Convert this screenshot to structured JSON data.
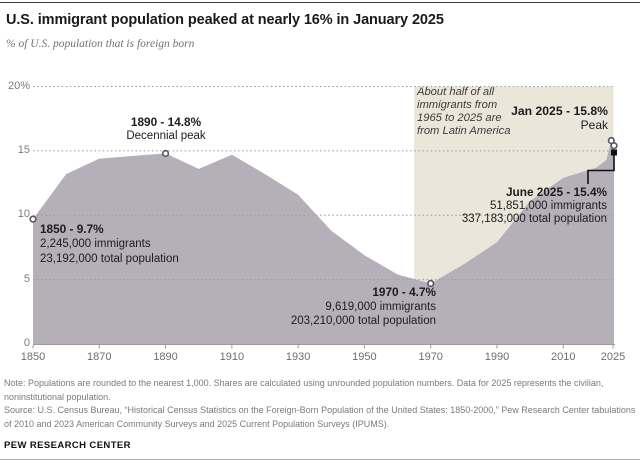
{
  "header": {
    "title": "U.S. immigrant population peaked at nearly 16% in January 2025",
    "subtitle": "% of U.S. population that is foreign born"
  },
  "chart_data": {
    "type": "area",
    "title": "U.S. immigrant population peaked at nearly 16% in January 2025",
    "ylabel": "% of U.S. population that is foreign born",
    "xlabel": "",
    "ylim": [
      0,
      20
    ],
    "grid": "dotted horizontal lines at 5, 10, 15, 20",
    "y_ticks": [
      {
        "value": 0,
        "label": "0"
      },
      {
        "value": 5,
        "label": "5"
      },
      {
        "value": 10,
        "label": "10"
      },
      {
        "value": 15,
        "label": "15"
      },
      {
        "value": 20,
        "label": "20%"
      }
    ],
    "x_ticks": [
      "1850",
      "1870",
      "1890",
      "1910",
      "1930",
      "1950",
      "1970",
      "1990",
      "2010",
      "2025"
    ],
    "series": [
      {
        "name": "Foreign-born share of U.S. population",
        "points": [
          {
            "x": "1850",
            "y": 9.7
          },
          {
            "x": "1860",
            "y": 13.2
          },
          {
            "x": "1870",
            "y": 14.4
          },
          {
            "x": "1890",
            "y": 14.8
          },
          {
            "x": "1900",
            "y": 13.6
          },
          {
            "x": "1910",
            "y": 14.7
          },
          {
            "x": "1920",
            "y": 13.2
          },
          {
            "x": "1930",
            "y": 11.6
          },
          {
            "x": "1940",
            "y": 8.8
          },
          {
            "x": "1950",
            "y": 6.9
          },
          {
            "x": "1960",
            "y": 5.4
          },
          {
            "x": "1970",
            "y": 4.7
          },
          {
            "x": "1980",
            "y": 6.2
          },
          {
            "x": "1990",
            "y": 7.9
          },
          {
            "x": "2000",
            "y": 11.1
          },
          {
            "x": "2010",
            "y": 12.9
          },
          {
            "x": "2020",
            "y": 13.7
          },
          {
            "x": "2023",
            "y": 14.3
          },
          {
            "x": "Jan 2025",
            "y": 15.8
          },
          {
            "x": "June 2025",
            "y": 15.4
          }
        ]
      }
    ],
    "markers": [
      {
        "x": "1850",
        "y": 9.7,
        "style": "open-circle"
      },
      {
        "x": "1890",
        "y": 14.8,
        "style": "open-circle"
      },
      {
        "x": "1970",
        "y": 4.7,
        "style": "open-circle"
      },
      {
        "x": "Jan 2025",
        "y": 15.8,
        "style": "open-circle"
      },
      {
        "x": "June 2025",
        "y": 15.4,
        "style": "open-circle-with-black-square-callout"
      }
    ],
    "highlight_band": {
      "from": "1965",
      "to": "2025"
    },
    "legend": "none"
  },
  "annotations": {
    "a1890": {
      "lines": [
        "1890 - 14.8%",
        "Decennial peak"
      ]
    },
    "a1850": {
      "lines": [
        "1850 - 9.7%",
        "2,245,000 immigrants",
        "23,192,000 total population"
      ]
    },
    "a1970": {
      "lines": [
        "1970 - 4.7%",
        "9,619,000 immigrants",
        "203,210,000 total population"
      ]
    },
    "aJan": {
      "lines": [
        "Jan 2025 - 15.8%",
        "Peak"
      ]
    },
    "aJune": {
      "lines": [
        "June 2025 - 15.4%",
        "51,851,000 immigrants",
        "337,183,000 total population"
      ]
    },
    "latin": {
      "lines": [
        "About half of all",
        "immigrants from",
        "1965 to 2025 are",
        "from Latin America"
      ]
    }
  },
  "footer": {
    "note": "Note: Populations are rounded to the nearest 1,000. Shares are calculated using unrounded population numbers. Data for 2025 represents the civilian, noninstitutional population.",
    "source": "Source: U.S. Census Bureau, “Historical Census Statistics on the Foreign-Born Population of the United States: 1850-2000,” Pew Research Center tabulations of 2010 and 2023 American Community Surveys and 2025 Current Population Surveys (IPUMS).",
    "brand": "PEW RESEARCH CENTER"
  },
  "colors": {
    "area_fill": "#b5afba",
    "band_fill": "#eae6da",
    "marker_ring": "#5c5766",
    "callout_black": "#111111",
    "grid": "#9b9b9b",
    "axis": "#9a9a9a"
  }
}
